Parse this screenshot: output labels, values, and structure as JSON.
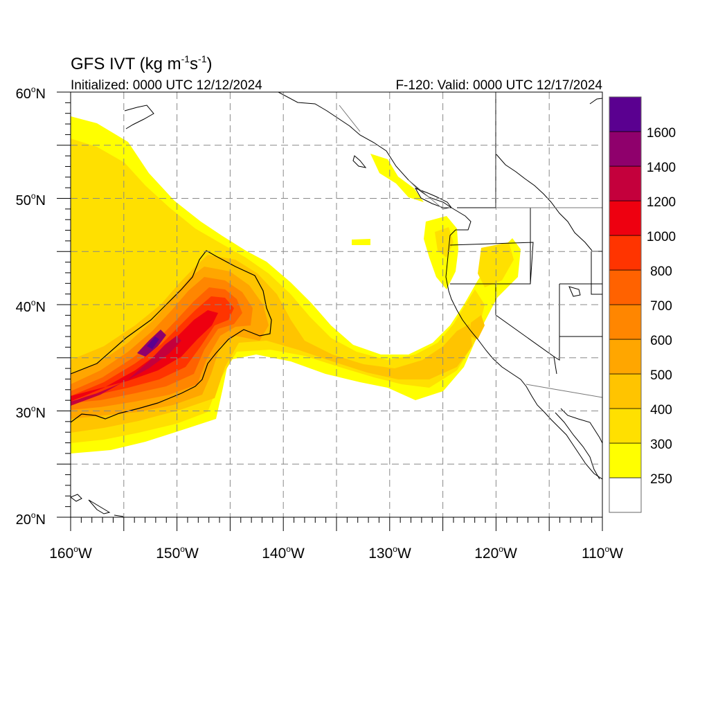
{
  "header": {
    "title": "GFS IVT (kg m",
    "title_sup1": "-1",
    "title_mid": "s",
    "title_sup2": "-1",
    "title_end": ")",
    "initialized": "Initialized: 0000 UTC 12/12/2024",
    "valid": "F-120: Valid: 0000 UTC 12/17/2024"
  },
  "map": {
    "lon_range": [
      -160,
      -110
    ],
    "lat_range": [
      20,
      60
    ],
    "gridlines": "dashed",
    "lat_labels": [
      "20",
      "30",
      "40",
      "50",
      "60"
    ],
    "lat_suffix": "N",
    "lon_labels": [
      "160",
      "150",
      "140",
      "130",
      "120",
      "110"
    ],
    "lon_suffix": "W",
    "degree": "o",
    "colors": {
      "coast": "#000000",
      "border": "#777777",
      "grid": "#888888"
    }
  },
  "colorbar": {
    "levels": [
      "250",
      "300",
      "400",
      "500",
      "600",
      "700",
      "800",
      "1000",
      "1200",
      "1400",
      "1600"
    ],
    "colors": [
      "#ffffff",
      "#ffff00",
      "#ffe000",
      "#ffc400",
      "#ffa600",
      "#ff8600",
      "#ff6200",
      "#ff3400",
      "#ee0010",
      "#c4003c",
      "#8f006c",
      "#5a0090"
    ]
  }
}
